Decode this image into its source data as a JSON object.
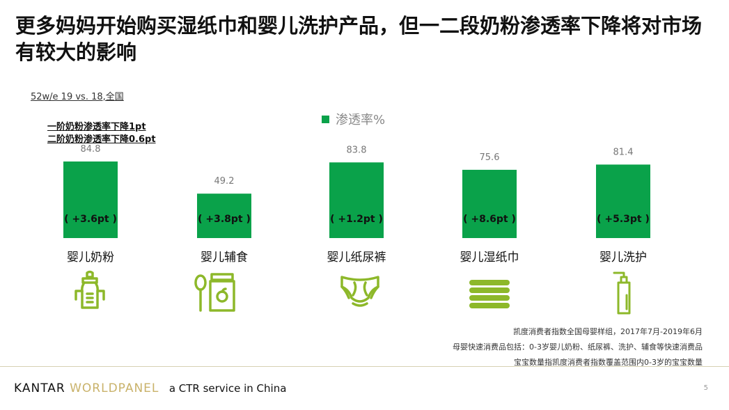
{
  "title": "更多妈妈开始购买湿纸巾和婴儿洗护产品，但一二段奶粉渗透率下降将对市场有较大的影响",
  "scope": "52w/e 19 vs. 18,全国",
  "notes": [
    "一阶奶粉渗透率下降1pt",
    "二阶奶粉渗透率下降0.6pt"
  ],
  "legend_label": "渗透率%",
  "colors": {
    "bar": "#0aa24a",
    "icon": "#8db82a",
    "brand_gold": "#c9b26a"
  },
  "chart_data": {
    "type": "bar",
    "categories": [
      "婴儿奶粉",
      "婴儿辅食",
      "婴儿纸尿裤",
      "婴儿湿纸巾",
      "婴儿洗护"
    ],
    "series": [
      {
        "name": "渗透率%",
        "values": [
          84.8,
          49.2,
          83.8,
          75.6,
          81.4
        ]
      }
    ],
    "value_labels": [
      "84.8",
      "49.2",
      "83.8",
      "75.6",
      "81.4"
    ],
    "changes": [
      "( +3.6pt )",
      "( +3.8pt )",
      "( +1.2pt )",
      "( +8.6pt )",
      "( +5.3pt )"
    ],
    "ylim": [
      0,
      100
    ]
  },
  "category_icons": [
    "baby-bottle-icon",
    "baby-food-jar-icon",
    "diaper-icon",
    "wet-wipes-icon",
    "lotion-pump-icon"
  ],
  "footnotes": [
    "凯度消费者指数全国母婴样组，2017年7月-2019年6月",
    "母婴快速消费品包括：0-3岁婴儿奶粉、纸尿裤、洗护、辅食等快速消费品",
    "宝宝数量指凯度消费者指数覆盖范围内0-3岁的宝宝数量"
  ],
  "brand": {
    "kantar": "KANTAR",
    "worldpanel": "WORLDPANEL",
    "tagline": "a CTR service in China"
  },
  "page_number": "5"
}
